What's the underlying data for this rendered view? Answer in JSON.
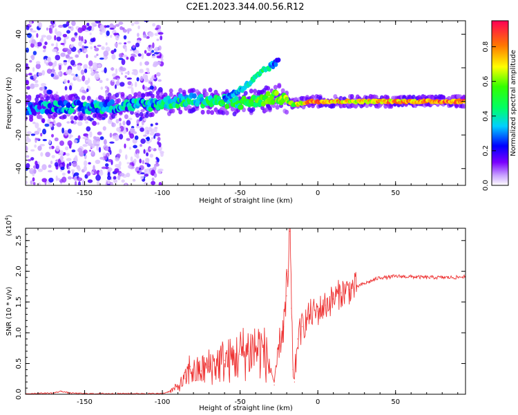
{
  "title": "C2E1.2023.344.00.56.R12",
  "chart_data": [
    {
      "type": "heatmap",
      "xlabel": "Height of straight line (km)",
      "ylabel": "Frequency (Hz)",
      "xlim": [
        -188,
        95
      ],
      "ylim": [
        -50,
        48
      ],
      "xticks": [
        "-150",
        "-100",
        "-50",
        "0",
        "50"
      ],
      "xtick_values": [
        -150,
        -100,
        -50,
        0,
        50
      ],
      "yticks": [
        "-40",
        "-20",
        "0",
        "20",
        "40"
      ],
      "ytick_values": [
        -40,
        -20,
        0,
        20,
        40
      ],
      "colorbar": {
        "label": "Normalized spectral amplitude",
        "range": [
          0,
          0.95
        ],
        "ticks": [
          "0.0",
          "0.2",
          "0.4",
          "0.6",
          "0.8"
        ],
        "tick_values": [
          0.0,
          0.2,
          0.4,
          0.6,
          0.8
        ]
      },
      "ridge": {
        "x": [
          -185,
          -170,
          -160,
          -150,
          -140,
          -130,
          -120,
          -110,
          -100,
          -90,
          -80,
          -70,
          -60,
          -50,
          -40,
          -30,
          -25,
          -20,
          -15,
          -10,
          -5,
          0,
          10,
          20,
          30,
          40,
          50,
          60,
          70,
          80,
          95
        ],
        "frequency": [
          -4,
          -3,
          -3,
          -4,
          -3,
          -3,
          -2,
          -2,
          -1,
          0,
          1,
          0,
          0,
          -1,
          0,
          2,
          3,
          0,
          -2,
          -1,
          0,
          0,
          0,
          0,
          0,
          0,
          0,
          0,
          0,
          0,
          0
        ],
        "amplitude": [
          0.25,
          0.3,
          0.3,
          0.3,
          0.35,
          0.3,
          0.3,
          0.35,
          0.35,
          0.4,
          0.4,
          0.45,
          0.45,
          0.45,
          0.5,
          0.55,
          0.6,
          0.6,
          0.6,
          0.7,
          0.8,
          0.85,
          0.75,
          0.7,
          0.7,
          0.75,
          0.75,
          0.75,
          0.8,
          0.8,
          0.8
        ]
      },
      "upper_branch": {
        "x": [
          -60,
          -55,
          -50,
          -45,
          -40,
          -35,
          -30,
          -25
        ],
        "frequency": [
          2,
          4,
          7,
          10,
          14,
          18,
          21,
          24
        ],
        "amplitude": [
          0.3,
          0.3,
          0.35,
          0.4,
          0.4,
          0.45,
          0.35,
          0.15
        ]
      }
    },
    {
      "type": "line",
      "xlabel": "Height of straight line (km)",
      "ylabel": "SNR (10 * v/v)",
      "multiplier": "(x10^4)",
      "xlim": [
        -188,
        95
      ],
      "ylim": [
        0,
        2.7
      ],
      "xticks": [
        "-150",
        "-100",
        "-50",
        "0",
        "50"
      ],
      "xtick_values": [
        -150,
        -100,
        -50,
        0,
        50
      ],
      "yticks": [
        "0.0",
        "0.5",
        "1.0",
        "1.5",
        "2.0",
        "2.5"
      ],
      "ytick_values": [
        0,
        0.5,
        1.0,
        1.5,
        2.0,
        2.5
      ],
      "series": [
        {
          "color": "#ee3333",
          "x": [
            -188,
            -170,
            -165,
            -160,
            -150,
            -120,
            -100,
            -95,
            -90,
            -85,
            -82,
            -80,
            -75,
            -70,
            -65,
            -60,
            -55,
            -50,
            -45,
            -40,
            -35,
            -30,
            -28,
            -25,
            -22,
            -20,
            -19,
            -18,
            -17,
            -16,
            -15,
            -13,
            -10,
            -5,
            0,
            5,
            10,
            15,
            20,
            25,
            30,
            35,
            40,
            45,
            50,
            60,
            70,
            80,
            90,
            95
          ],
          "y": [
            0.01,
            0.02,
            0.05,
            0.02,
            0.01,
            0.01,
            0.01,
            0.05,
            0.12,
            0.25,
            0.45,
            0.35,
            0.38,
            0.45,
            0.5,
            0.55,
            0.55,
            0.65,
            0.7,
            0.75,
            0.7,
            0.4,
            0.15,
            0.8,
            1.1,
            1.6,
            2.0,
            2.65,
            1.4,
            0.4,
            0.2,
            0.9,
            1.1,
            1.3,
            1.35,
            1.45,
            1.55,
            1.65,
            1.7,
            1.75,
            1.8,
            1.85,
            1.9,
            1.9,
            1.92,
            1.91,
            1.9,
            1.9,
            1.9,
            1.92
          ]
        }
      ]
    }
  ]
}
